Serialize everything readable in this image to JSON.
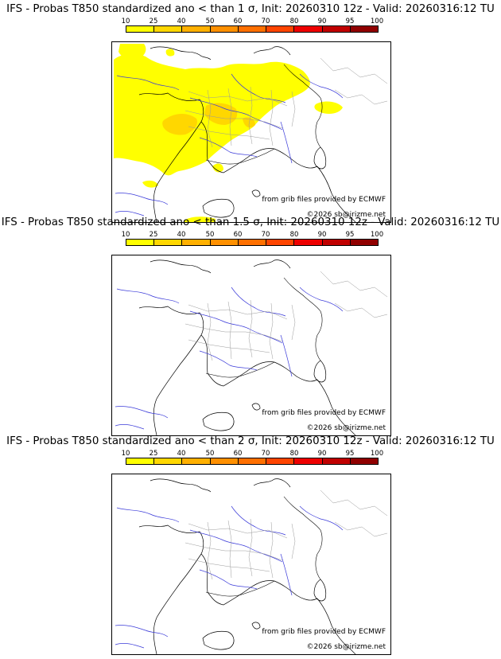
{
  "scale": {
    "labels": [
      "10",
      "25",
      "40",
      "50",
      "60",
      "70",
      "80",
      "90",
      "95",
      "100"
    ],
    "colors": [
      "#ffff00",
      "#ffd700",
      "#ffb000",
      "#ff9000",
      "#ff7000",
      "#ff4500",
      "#ee0000",
      "#c00000",
      "#900000",
      "#600000"
    ]
  },
  "panels": [
    {
      "title": "IFS - Probas T850  standardized ano < than 1 σ, Init: 20260310 12z - Valid: 20260316:12 TU",
      "credit_source": "from grib files provided by ECMWF",
      "credit_copyright": "©2026 sb@irizme.net",
      "has_probability_field": true
    },
    {
      "title": "IFS - Probas T850  standardized ano < than 1.5 σ, Init: 20260310 12z - Valid: 20260316:12 TU",
      "credit_source": "from grib files provided by ECMWF",
      "credit_copyright": "©2026 sb@irizme.net",
      "has_probability_field": false
    },
    {
      "title": "IFS - Probas T850  standardized ano < than 2 σ, Init: 20260310 12z - Valid: 20260316:12 TU",
      "credit_source": "from grib files provided by ECMWF",
      "credit_copyright": "©2026 sb@irizme.net",
      "has_probability_field": false
    }
  ]
}
